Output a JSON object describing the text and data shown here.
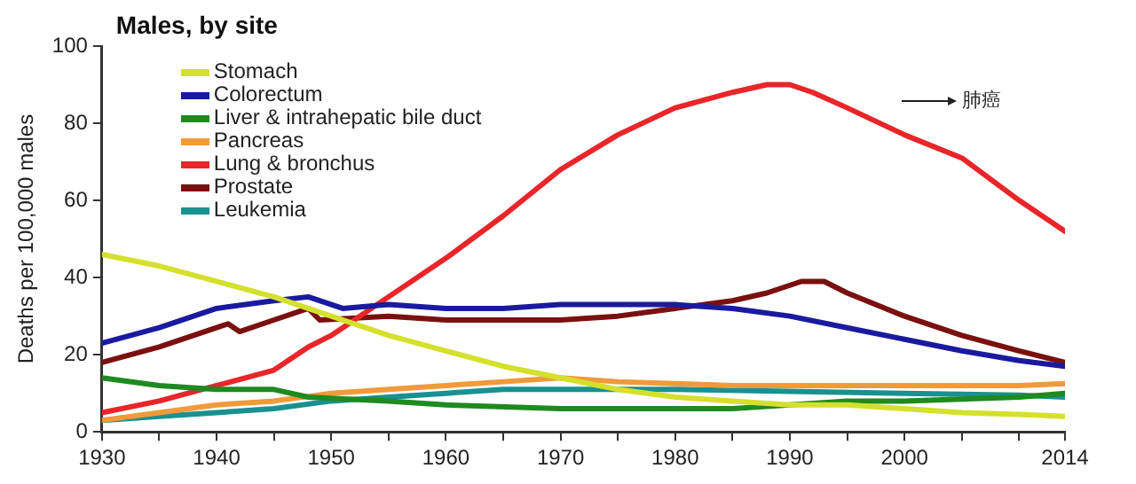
{
  "chart_data": {
    "type": "line",
    "title": "Males, by site",
    "ylabel": "Deaths per 100,000 males",
    "xlim": [
      1930,
      2014
    ],
    "xticks": [
      1930,
      {
        "value": 1935,
        "label": null
      },
      1940,
      {
        "value": 1945,
        "label": null
      },
      1950,
      {
        "value": 1955,
        "label": null
      },
      1960,
      {
        "value": 1965,
        "label": null
      },
      1970,
      {
        "value": 1975,
        "label": null
      },
      1980,
      {
        "value": 1985,
        "label": null
      },
      1990,
      {
        "value": 1995,
        "label": null
      },
      2000,
      {
        "value": 2005,
        "label": null
      },
      {
        "value": 2010,
        "label": null
      },
      2014
    ],
    "ylim": [
      0,
      100
    ],
    "yticks": [
      0,
      20,
      40,
      60,
      80,
      100
    ],
    "grid": false,
    "legend": "top left",
    "marker": "none",
    "line_style": "solid",
    "annotations": [
      "肺癌"
    ],
    "series": [
      {
        "name": "Stomach",
        "color": "#d4e02b",
        "x": [
          1930,
          1935,
          1940,
          1945,
          1950,
          1955,
          1960,
          1965,
          1970,
          1975,
          1980,
          1985,
          1990,
          1995,
          2000,
          2005,
          2010,
          2014
        ],
        "values": [
          46,
          43,
          39,
          35,
          30,
          25,
          21,
          17,
          14,
          11,
          9,
          8,
          7,
          7,
          6,
          5,
          4.5,
          4
        ]
      },
      {
        "name": "Colorectum",
        "color": "#1a1aa0",
        "x": [
          1930,
          1935,
          1940,
          1945,
          1948,
          1951,
          1955,
          1960,
          1965,
          1970,
          1975,
          1980,
          1985,
          1990,
          1995,
          2000,
          2005,
          2010,
          2014
        ],
        "values": [
          23,
          27,
          32,
          34,
          35,
          32,
          33,
          32,
          32,
          33,
          33,
          33,
          32,
          30,
          27,
          24,
          21,
          18.5,
          17
        ]
      },
      {
        "name": "Liver & intrahepatic bile duct",
        "color": "#1f8a1f",
        "x": [
          1930,
          1935,
          1940,
          1945,
          1948,
          1955,
          1960,
          1970,
          1975,
          1980,
          1985,
          1990,
          1995,
          2000,
          2005,
          2010,
          2014
        ],
        "values": [
          14,
          12,
          11,
          11,
          9,
          8,
          7,
          6,
          6,
          6,
          6,
          7,
          8,
          8,
          8.5,
          9,
          10
        ]
      },
      {
        "name": "Pancreas",
        "color": "#f09a3a",
        "x": [
          1930,
          1935,
          1940,
          1945,
          1950,
          1955,
          1960,
          1965,
          1970,
          1975,
          1980,
          1985,
          1990,
          1995,
          2000,
          2005,
          2010,
          2014
        ],
        "values": [
          3,
          5,
          7,
          8,
          10,
          11,
          12,
          13,
          14,
          13,
          12.5,
          12,
          12,
          12,
          12,
          12,
          12,
          12.5
        ]
      },
      {
        "name": "Lung & bronchus",
        "color": "#e8262a",
        "x": [
          1930,
          1935,
          1940,
          1945,
          1948,
          1950,
          1955,
          1960,
          1965,
          1970,
          1975,
          1980,
          1985,
          1988,
          1990,
          1992,
          1995,
          2000,
          2005,
          2010,
          2014
        ],
        "values": [
          5,
          8,
          12,
          16,
          22,
          25,
          35,
          45,
          56,
          68,
          77,
          84,
          88,
          90,
          90,
          88,
          84,
          77,
          71,
          60,
          52
        ]
      },
      {
        "name": "Prostate",
        "color": "#7a1010",
        "x": [
          1930,
          1935,
          1940,
          1941,
          1942,
          1945,
          1948,
          1949,
          1955,
          1960,
          1965,
          1970,
          1975,
          1980,
          1985,
          1988,
          1991,
          1993,
          1995,
          2000,
          2005,
          2010,
          2014
        ],
        "values": [
          18,
          22,
          27,
          28,
          26,
          29,
          32,
          29,
          30,
          29,
          29,
          29,
          30,
          32,
          34,
          36,
          39,
          39,
          36,
          30,
          25,
          21,
          18
        ]
      },
      {
        "name": "Leukemia",
        "color": "#1a9090",
        "x": [
          1930,
          1935,
          1940,
          1945,
          1950,
          1955,
          1960,
          1965,
          1970,
          1980,
          1990,
          2000,
          2010,
          2014
        ],
        "values": [
          3,
          4,
          5,
          6,
          8,
          9,
          10,
          11,
          11,
          11,
          10.5,
          10,
          9.5,
          9
        ]
      }
    ]
  }
}
